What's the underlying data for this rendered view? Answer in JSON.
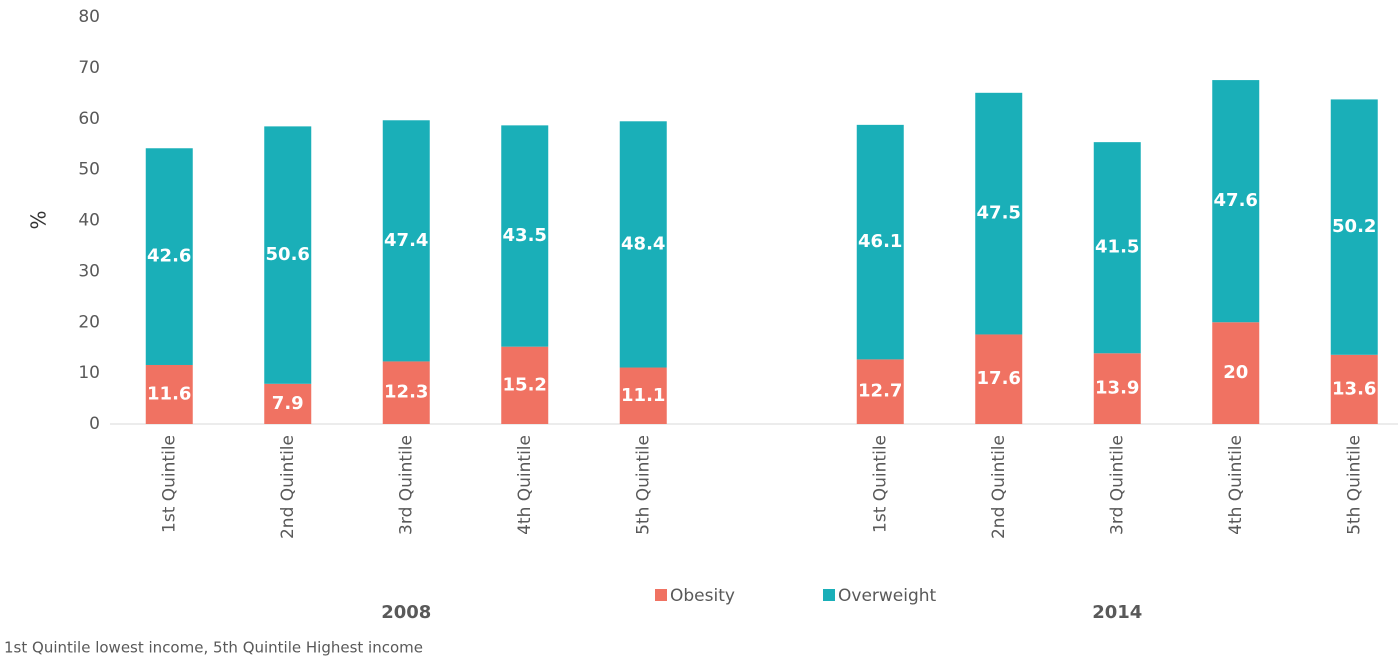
{
  "chart_data": {
    "type": "stacked_bar",
    "ylabel": "%",
    "categories": [
      "1st Quintile",
      "2nd Quintile",
      "3rd Quintile",
      "4th Quintile",
      "5th Quintile",
      null,
      "1st Quintile",
      "2nd Quintile",
      "3rd Quintile",
      "4th Quintile",
      "5th Quintile"
    ],
    "groups": [
      "2008",
      "2014"
    ],
    "series": [
      {
        "name": "Obesity",
        "color": "#f07262",
        "values": [
          11.6,
          7.9,
          12.3,
          15.2,
          11.1,
          null,
          12.7,
          17.6,
          13.9,
          20,
          13.6
        ]
      },
      {
        "name": "Overweight",
        "color": "#1aafb8",
        "values": [
          42.6,
          50.6,
          47.4,
          43.5,
          48.4,
          null,
          46.1,
          47.5,
          41.5,
          47.6,
          50.2
        ]
      }
    ],
    "ylim": [
      0,
      80
    ],
    "yticks": [
      0,
      10,
      20,
      30,
      40,
      50,
      60,
      70,
      80
    ],
    "legend": "bottom",
    "note": "1st Quintile lowest income, 5th Quintile Highest income"
  }
}
